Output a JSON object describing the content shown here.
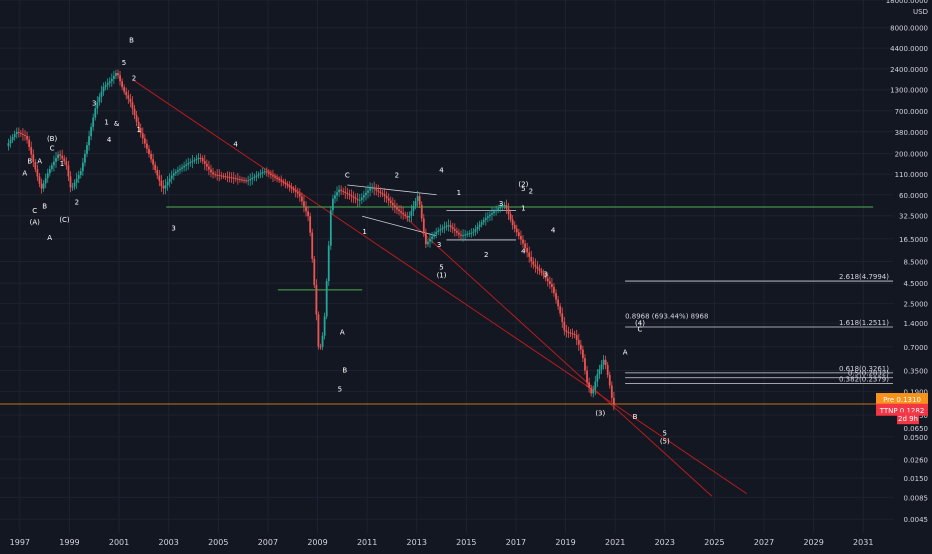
{
  "chart_data": {
    "type": "candlestick",
    "yscale": "log",
    "currency": "USD",
    "ylim": [
      0.003,
      18000
    ],
    "xlim": [
      1996.2,
      2032.2
    ],
    "y_ticks": [
      "18000.0000",
      "8000.0000",
      "4400.0000",
      "2400.0000",
      "1300.0000",
      "700.0000",
      "380.0000",
      "200.0000",
      "110.0000",
      "60.0000",
      "32.5000",
      "16.5000",
      "8.5000",
      "4.5000",
      "2.5000",
      "1.4000",
      "0.7000",
      "0.3500",
      "0.1900",
      "0.0950",
      "0.0500",
      "0.0260",
      "0.0150",
      "0.0085",
      "0.0045"
    ],
    "x_ticks": [
      "1997",
      "1999",
      "2001",
      "2003",
      "2005",
      "2007",
      "2009",
      "2011",
      "2013",
      "2015",
      "2017",
      "2019",
      "2021",
      "2023",
      "2025",
      "2027",
      "2029",
      "2031"
    ],
    "price_path": [
      [
        1996.5,
        250
      ],
      [
        1996.9,
        380
      ],
      [
        1997.3,
        330
      ],
      [
        1997.6,
        150
      ],
      [
        1997.9,
        70
      ],
      [
        1998.2,
        120
      ],
      [
        1998.6,
        200
      ],
      [
        1998.9,
        150
      ],
      [
        1999.1,
        70
      ],
      [
        1999.5,
        120
      ],
      [
        1999.8,
        300
      ],
      [
        2000.1,
        800
      ],
      [
        2000.4,
        1400
      ],
      [
        2000.7,
        1700
      ],
      [
        2000.95,
        2200
      ],
      [
        2001.2,
        1300
      ],
      [
        2001.5,
        900
      ],
      [
        2001.8,
        450
      ],
      [
        2002.3,
        180
      ],
      [
        2002.8,
        70
      ],
      [
        2003.2,
        110
      ],
      [
        2003.8,
        150
      ],
      [
        2004.3,
        180
      ],
      [
        2004.8,
        110
      ],
      [
        2005.5,
        100
      ],
      [
        2006.2,
        90
      ],
      [
        2006.9,
        120
      ],
      [
        2007.3,
        100
      ],
      [
        2007.8,
        80
      ],
      [
        2008.3,
        60
      ],
      [
        2008.7,
        30
      ],
      [
        2008.95,
        3
      ],
      [
        2009.1,
        0.55
      ],
      [
        2009.3,
        1.2
      ],
      [
        2009.6,
        50
      ],
      [
        2009.9,
        70
      ],
      [
        2010.3,
        60
      ],
      [
        2010.7,
        50
      ],
      [
        2011.2,
        75
      ],
      [
        2011.7,
        60
      ],
      [
        2012.2,
        40
      ],
      [
        2012.7,
        30
      ],
      [
        2013.1,
        60
      ],
      [
        2013.4,
        14
      ],
      [
        2013.8,
        20
      ],
      [
        2014.3,
        25
      ],
      [
        2014.8,
        18
      ],
      [
        2015.3,
        20
      ],
      [
        2015.8,
        30
      ],
      [
        2016.3,
        40
      ],
      [
        2016.6,
        45
      ],
      [
        2016.9,
        25
      ],
      [
        2017.3,
        15
      ],
      [
        2017.7,
        8
      ],
      [
        2018.1,
        6
      ],
      [
        2018.5,
        4
      ],
      [
        2018.8,
        2
      ],
      [
        2019.0,
        1.1
      ],
      [
        2019.4,
        1.0
      ],
      [
        2019.7,
        0.6
      ],
      [
        2019.9,
        0.25
      ],
      [
        2020.1,
        0.17
      ],
      [
        2020.3,
        0.3
      ],
      [
        2020.6,
        0.5
      ],
      [
        2020.8,
        0.25
      ],
      [
        2020.95,
        0.13
      ]
    ],
    "wave_labels": [
      {
        "text": "B",
        "x": 1997.4,
        "y": 150
      },
      {
        "text": "A",
        "x": 1997.2,
        "y": 105
      },
      {
        "text": "A",
        "x": 1997.8,
        "y": 150
      },
      {
        "text": "B",
        "x": 1998.0,
        "y": 40
      },
      {
        "text": "C",
        "x": 1997.6,
        "y": 35
      },
      {
        "text": "(A)",
        "x": 1997.6,
        "y": 25
      },
      {
        "text": "(B)",
        "x": 1998.3,
        "y": 290
      },
      {
        "text": "C",
        "x": 1998.3,
        "y": 220
      },
      {
        "text": "1",
        "x": 1998.7,
        "y": 140
      },
      {
        "text": "(C)",
        "x": 1998.8,
        "y": 27
      },
      {
        "text": "2",
        "x": 1999.3,
        "y": 45
      },
      {
        "text": "A",
        "x": 1998.2,
        "y": 16
      },
      {
        "text": "1",
        "x": 2000.5,
        "y": 470
      },
      {
        "text": "3",
        "x": 2000.0,
        "y": 820
      },
      {
        "text": "4",
        "x": 2000.6,
        "y": 280
      },
      {
        "text": "&",
        "x": 2000.9,
        "y": 450
      },
      {
        "text": "5",
        "x": 2001.2,
        "y": 2700
      },
      {
        "text": "2",
        "x": 2001.6,
        "y": 1700
      },
      {
        "text": "B",
        "x": 2001.5,
        "y": 5200
      },
      {
        "text": "1",
        "x": 2001.8,
        "y": 380
      },
      {
        "text": "3",
        "x": 2003.2,
        "y": 21
      },
      {
        "text": "4",
        "x": 2005.7,
        "y": 245
      },
      {
        "text": "C",
        "x": 2010.2,
        "y": 100
      },
      {
        "text": "2",
        "x": 2012.2,
        "y": 100
      },
      {
        "text": "4",
        "x": 2014.0,
        "y": 115
      },
      {
        "text": "1",
        "x": 2014.7,
        "y": 60
      },
      {
        "text": "1",
        "x": 2010.9,
        "y": 19
      },
      {
        "text": "3",
        "x": 2013.9,
        "y": 13
      },
      {
        "text": "5",
        "x": 2014.0,
        "y": 6.7
      },
      {
        "text": "(1)",
        "x": 2014.0,
        "y": 5.3
      },
      {
        "text": "2",
        "x": 2015.8,
        "y": 9.7
      },
      {
        "text": "4",
        "x": 2017.3,
        "y": 10.7
      },
      {
        "text": "3",
        "x": 2016.4,
        "y": 43
      },
      {
        "text": "(2)",
        "x": 2017.3,
        "y": 76
      },
      {
        "text": "5",
        "x": 2017.3,
        "y": 67
      },
      {
        "text": "2",
        "x": 2017.6,
        "y": 62
      },
      {
        "text": "1",
        "x": 2017.3,
        "y": 38
      },
      {
        "text": "4",
        "x": 2018.5,
        "y": 20
      },
      {
        "text": "3",
        "x": 2018.2,
        "y": 5.5
      },
      {
        "text": "A",
        "x": 2010.0,
        "y": 1.0
      },
      {
        "text": "B",
        "x": 2010.1,
        "y": 0.33
      },
      {
        "text": "5",
        "x": 2009.9,
        "y": 0.19
      },
      {
        "text": "(3)",
        "x": 2020.4,
        "y": 0.093
      },
      {
        "text": "A",
        "x": 2021.4,
        "y": 0.56
      },
      {
        "text": "(4)",
        "x": 2022.0,
        "y": 1.3
      },
      {
        "text": "C",
        "x": 2022.0,
        "y": 1.1
      },
      {
        "text": "B",
        "x": 2021.8,
        "y": 0.085
      },
      {
        "text": "5",
        "x": 2023.0,
        "y": 0.052
      },
      {
        "text": "(5)",
        "x": 2023.0,
        "y": 0.041
      }
    ],
    "fib_levels": [
      {
        "label": "2.618(4.7994)",
        "y": 4.8
      },
      {
        "label": "1.618(1.2511)",
        "y": 1.25
      },
      {
        "label": "0.618(0.3261)",
        "y": 0.326
      },
      {
        "label": "0.5(0.2832)",
        "y": 0.283
      },
      {
        "label": "0.382(0.2379)",
        "y": 0.238
      }
    ],
    "measurement_label": "0.8968 (693.44%) 8968",
    "price_tags": [
      {
        "name": "Pre",
        "value": "0.1310",
        "color": "#f7931a",
        "y": 0.131
      },
      {
        "name": "TTNP",
        "value": "0.1282",
        "color": "#f23645",
        "y": 0.1282
      }
    ],
    "countdown": "2d 9h",
    "countdown_value": "0.0650"
  },
  "colors": {
    "background": "#131722",
    "grid": "#1e2230",
    "up": "#26a69a",
    "down": "#ef5350",
    "trend": "#b71c1c",
    "support": "#4caf50",
    "text": "#d1d4dc"
  }
}
